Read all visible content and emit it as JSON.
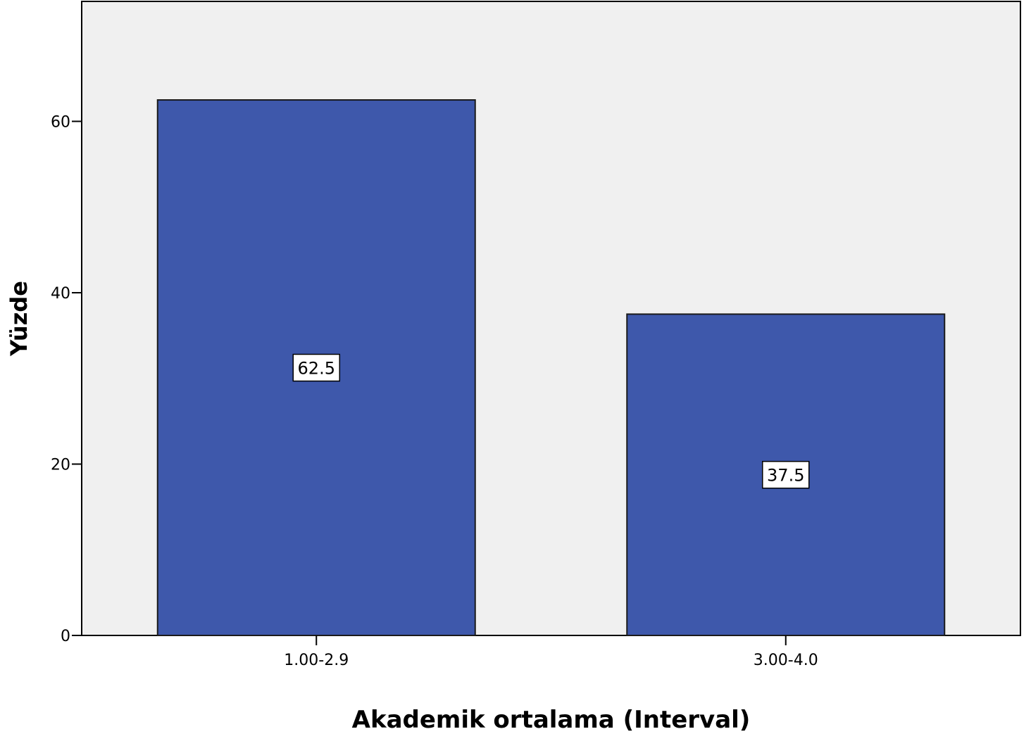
{
  "chart_data": {
    "type": "bar",
    "categories": [
      "1.00-2.9",
      "3.00-4.0"
    ],
    "values": [
      62.5,
      37.5
    ],
    "data_labels": [
      "62.5",
      "37.5"
    ],
    "title": "",
    "xlabel": "Akademik ortalama (Interval)",
    "ylabel": "Yüzde",
    "ylim": [
      0,
      74
    ],
    "yticks": [
      0,
      20,
      40,
      60
    ],
    "ytick_labels": [
      "0",
      "20",
      "40",
      "60"
    ],
    "grid": false,
    "legend": "none",
    "colors": {
      "bar_fill": "#3e58ab",
      "bar_stroke": "#1a1a1a",
      "plot_background": "#f0f0f0",
      "axis": "#000000",
      "label_box_fill": "#ffffff"
    }
  }
}
